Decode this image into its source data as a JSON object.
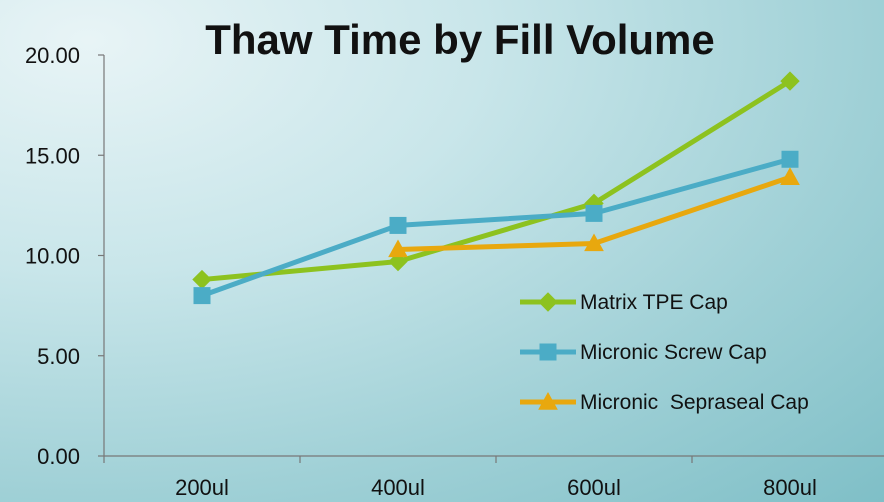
{
  "chart_data": {
    "type": "line",
    "title": "Thaw Time by Fill Volume",
    "xlabel": "",
    "ylabel": "",
    "categories": [
      "200ul",
      "400ul",
      "600ul",
      "800ul"
    ],
    "ylim": [
      0,
      20
    ],
    "yticks": [
      "0.00",
      "5.00",
      "10.00",
      "15.00",
      "20.00"
    ],
    "grid": false,
    "legend_position": "right",
    "series": [
      {
        "name": "Matrix TPE Cap",
        "values": [
          8.8,
          9.7,
          12.6,
          18.7
        ],
        "color": "#8dc21f",
        "marker": "diamond"
      },
      {
        "name": "Micronic Screw Cap",
        "values": [
          8.0,
          11.5,
          12.1,
          14.8
        ],
        "color": "#4bacc6",
        "marker": "square"
      },
      {
        "name": "Micronic  Sepraseal Cap",
        "values": [
          null,
          10.3,
          10.6,
          13.9
        ],
        "color": "#e8a80e",
        "marker": "triangle"
      }
    ]
  }
}
